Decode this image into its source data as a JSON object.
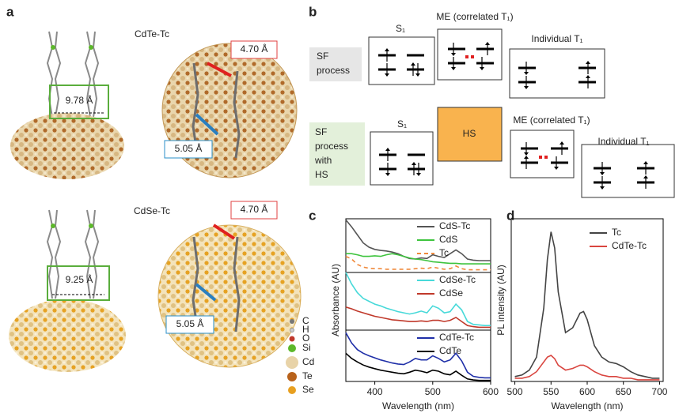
{
  "panel_labels": [
    "a",
    "b",
    "c",
    "d"
  ],
  "panel_a": {
    "top": {
      "title": "CdTe-Tc",
      "width_label": "9.78 Å",
      "distance_1": "4.70 Å",
      "distance_2": "5.05 Å"
    },
    "bottom": {
      "title": "CdSe-Tc",
      "width_label": "9.25 Å",
      "distance_1": "4.70 Å",
      "distance_2": "5.05 Å"
    },
    "legend": [
      "C",
      "H",
      "O",
      "Si",
      "Cd",
      "Te",
      "Se"
    ]
  },
  "panel_b": {
    "row_1": {
      "label_lines": [
        "SF",
        "process"
      ],
      "states": [
        "S₁",
        "ME (correlated T₁)",
        "Individual T₁"
      ]
    },
    "row_2": {
      "label_lines": [
        "SF",
        "process",
        "with",
        "HS"
      ],
      "hs": "HS",
      "states": [
        "S₁",
        "ME (correlated T₁)",
        "Individual T₁"
      ]
    }
  },
  "chart_data": [
    {
      "type": "line",
      "xlim": [
        350,
        600
      ],
      "ylim": [
        0,
        1
      ],
      "x": [
        350,
        360,
        370,
        380,
        390,
        400,
        410,
        420,
        430,
        440,
        450,
        460,
        470,
        480,
        490,
        500,
        510,
        520,
        530,
        540,
        550,
        560,
        570,
        580,
        590,
        600
      ],
      "series": [
        {
          "name": "CdS-Tc",
          "color": "#555555",
          "values": [
            0.98,
            0.85,
            0.7,
            0.55,
            0.47,
            0.43,
            0.41,
            0.4,
            0.38,
            0.35,
            0.3,
            0.26,
            0.25,
            0.27,
            0.26,
            0.33,
            0.3,
            0.28,
            0.35,
            0.42,
            0.35,
            0.25,
            0.23,
            0.22,
            0.22,
            0.22
          ]
        },
        {
          "name": "CdS",
          "color": "#3ec43e",
          "values": [
            0.35,
            0.35,
            0.33,
            0.3,
            0.3,
            0.31,
            0.3,
            0.33,
            0.35,
            0.33,
            0.3,
            0.27,
            0.25,
            0.24,
            0.22,
            0.2,
            0.19,
            0.18,
            0.17,
            0.17,
            0.16,
            0.16,
            0.16,
            0.16,
            0.16,
            0.16
          ]
        },
        {
          "name": "Tc",
          "color": "#f08a3c",
          "dashed": true,
          "values": [
            0.3,
            0.25,
            0.15,
            0.1,
            0.08,
            0.07,
            0.07,
            0.06,
            0.06,
            0.06,
            0.06,
            0.06,
            0.07,
            0.08,
            0.07,
            0.1,
            0.08,
            0.06,
            0.07,
            0.12,
            0.07,
            0.05,
            0.05,
            0.05,
            0.05,
            0.05
          ]
        }
      ]
    },
    {
      "type": "line",
      "xlim": [
        350,
        600
      ],
      "ylim": [
        0,
        1
      ],
      "ylabel": "Absorbance (AU)",
      "x": [
        350,
        360,
        370,
        380,
        390,
        400,
        410,
        420,
        430,
        440,
        450,
        460,
        470,
        480,
        490,
        500,
        510,
        520,
        530,
        540,
        550,
        560,
        570,
        580,
        590,
        600
      ],
      "series": [
        {
          "name": "CdSe-Tc",
          "color": "#47d9d9",
          "values": [
            1,
            0.8,
            0.65,
            0.55,
            0.5,
            0.45,
            0.42,
            0.38,
            0.35,
            0.32,
            0.3,
            0.28,
            0.3,
            0.33,
            0.3,
            0.42,
            0.38,
            0.3,
            0.32,
            0.45,
            0.35,
            0.15,
            0.1,
            0.09,
            0.08,
            0.08
          ]
        },
        {
          "name": "CdSe",
          "color": "#c0392b",
          "values": [
            0.4,
            0.37,
            0.33,
            0.3,
            0.27,
            0.24,
            0.22,
            0.2,
            0.18,
            0.17,
            0.16,
            0.15,
            0.15,
            0.16,
            0.15,
            0.17,
            0.17,
            0.15,
            0.17,
            0.22,
            0.15,
            0.08,
            0.06,
            0.05,
            0.05,
            0.05
          ]
        }
      ]
    },
    {
      "type": "line",
      "xlim": [
        350,
        600
      ],
      "ylim": [
        0,
        1
      ],
      "xticks": [
        400,
        500,
        600
      ],
      "xlabel": "Wavelength (nm)",
      "x": [
        350,
        360,
        370,
        380,
        390,
        400,
        410,
        420,
        430,
        440,
        450,
        460,
        470,
        480,
        490,
        500,
        510,
        520,
        530,
        540,
        550,
        560,
        570,
        580,
        590,
        600
      ],
      "series": [
        {
          "name": "CdTe-Tc",
          "color": "#1f2fa8",
          "values": [
            0.95,
            0.75,
            0.62,
            0.55,
            0.5,
            0.46,
            0.42,
            0.39,
            0.36,
            0.34,
            0.33,
            0.38,
            0.45,
            0.42,
            0.42,
            0.5,
            0.45,
            0.38,
            0.42,
            0.55,
            0.4,
            0.18,
            0.1,
            0.08,
            0.07,
            0.07
          ]
        },
        {
          "name": "CdTe",
          "color": "#000000",
          "values": [
            0.55,
            0.45,
            0.38,
            0.32,
            0.28,
            0.25,
            0.22,
            0.2,
            0.18,
            0.16,
            0.15,
            0.18,
            0.22,
            0.2,
            0.17,
            0.22,
            0.2,
            0.15,
            0.13,
            0.2,
            0.12,
            0.05,
            0.03,
            0.02,
            0.02,
            0.02
          ]
        }
      ]
    },
    {
      "type": "line",
      "xlim": [
        495,
        705
      ],
      "ylim": [
        0,
        1
      ],
      "xticks": [
        500,
        550,
        600,
        650,
        700
      ],
      "xlabel": "Wavelength (nm)",
      "ylabel": "PL intensity (AU)",
      "x": [
        500,
        510,
        520,
        530,
        540,
        545,
        550,
        555,
        560,
        570,
        580,
        590,
        595,
        600,
        610,
        620,
        630,
        640,
        650,
        660,
        670,
        680,
        690,
        700
      ],
      "series": [
        {
          "name": "Tc",
          "color": "#444444",
          "values": [
            0.03,
            0.04,
            0.07,
            0.15,
            0.45,
            0.75,
            0.92,
            0.82,
            0.55,
            0.3,
            0.33,
            0.42,
            0.43,
            0.38,
            0.22,
            0.15,
            0.12,
            0.11,
            0.09,
            0.06,
            0.04,
            0.03,
            0.02,
            0.02
          ]
        },
        {
          "name": "CdTe-Tc",
          "color": "#d9453f",
          "values": [
            0.02,
            0.02,
            0.03,
            0.06,
            0.12,
            0.15,
            0.16,
            0.14,
            0.1,
            0.07,
            0.08,
            0.1,
            0.1,
            0.09,
            0.06,
            0.04,
            0.03,
            0.03,
            0.02,
            0.02,
            0.01,
            0.01,
            0.01,
            0.01
          ]
        }
      ]
    }
  ]
}
